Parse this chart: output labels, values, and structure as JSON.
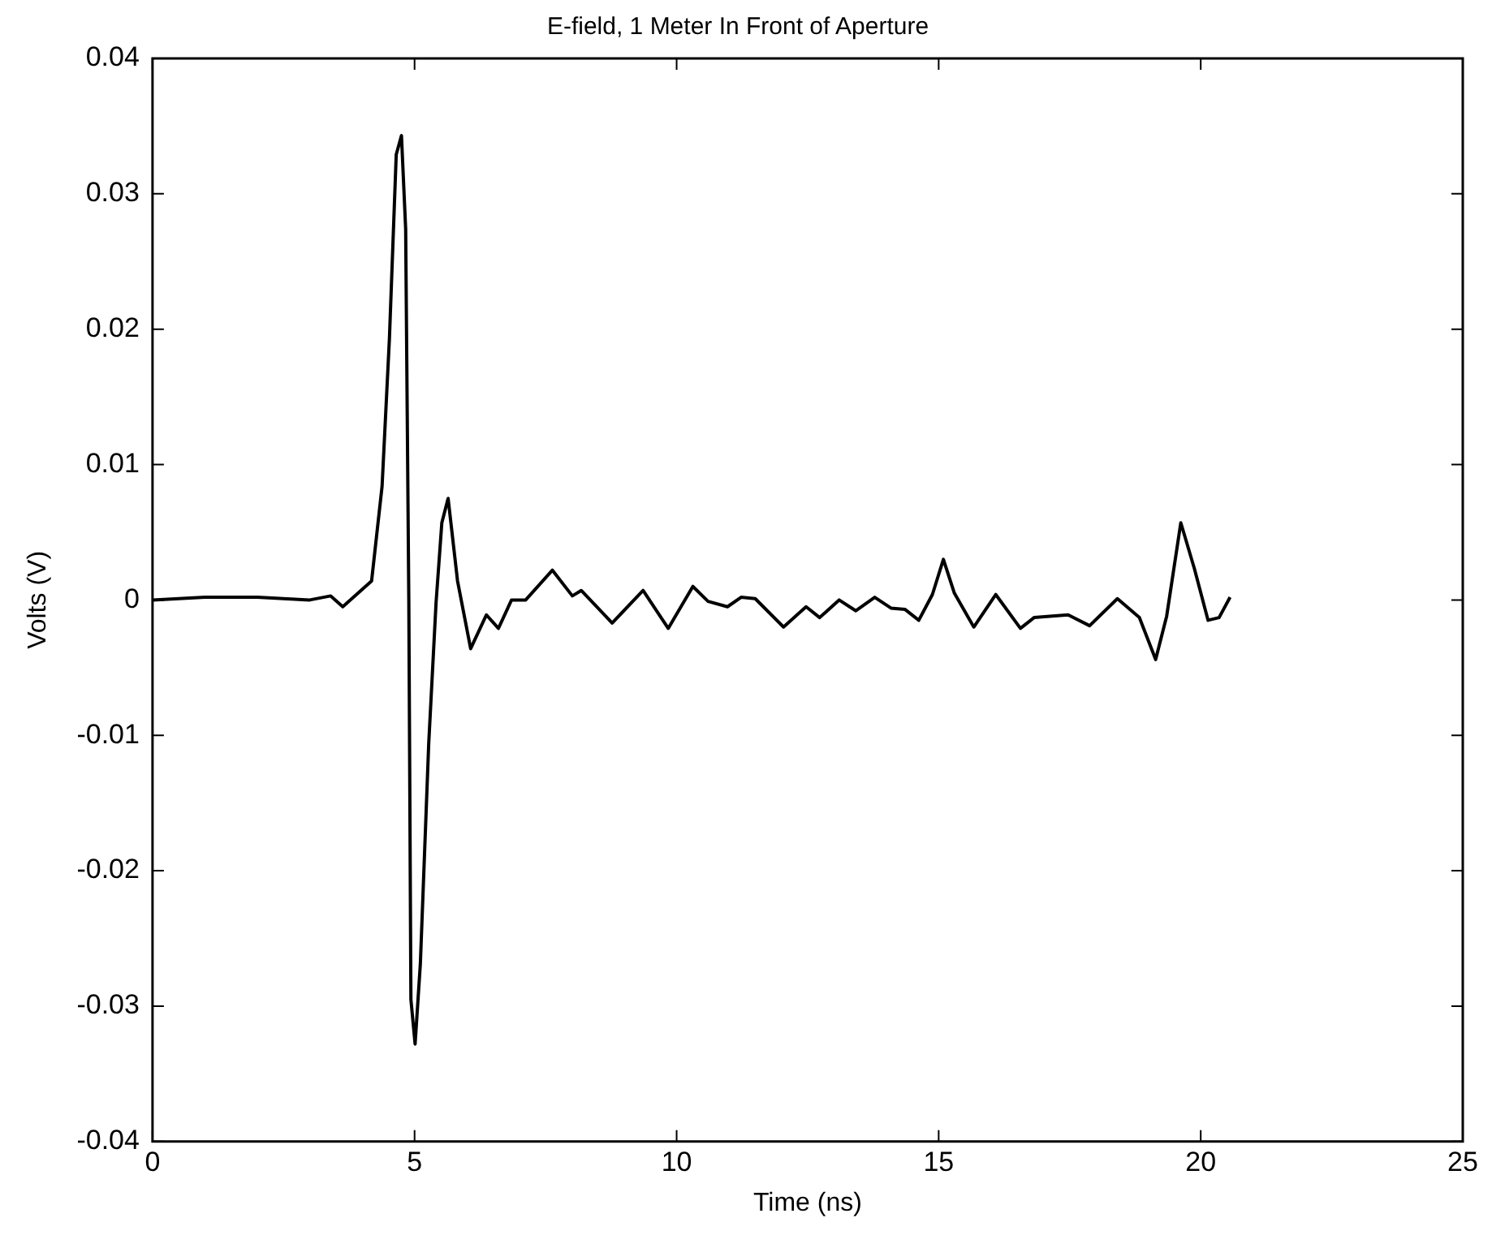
{
  "chart_data": {
    "type": "line",
    "title": "E-field, 1 Meter In Front of Aperture",
    "xlabel": "Time (ns)",
    "ylabel": "Volts (V)",
    "xlim": [
      0,
      25
    ],
    "xticks": [
      0,
      5,
      10,
      15,
      20,
      25
    ],
    "ylim": [
      -0.04,
      0.04
    ],
    "yticks": [
      -0.04,
      -0.03,
      -0.02,
      -0.01,
      0,
      0.01,
      0.02,
      0.03,
      0.04
    ],
    "grid": false,
    "legend": false,
    "marker": "none",
    "line_style": "solid",
    "series": [
      {
        "color": "#000000",
        "x": [
          0,
          1,
          2,
          3,
          3.4,
          3.63,
          4.18,
          4.38,
          4.52,
          4.65,
          4.75,
          4.83,
          4.89,
          4.93,
          5.01,
          5.11,
          5.27,
          5.41,
          5.52,
          5.64,
          5.82,
          6.07,
          6.37,
          6.6,
          6.85,
          7.12,
          7.63,
          8.01,
          8.18,
          8.77,
          9.36,
          9.84,
          10.31,
          10.6,
          10.97,
          11.23,
          11.5,
          12.04,
          12.47,
          12.73,
          13.1,
          13.42,
          13.78,
          14.09,
          14.36,
          14.62,
          14.88,
          15.09,
          15.3,
          15.67,
          16.09,
          16.56,
          16.82,
          17.47,
          17.88,
          18.41,
          18.83,
          19.14,
          19.35,
          19.62,
          19.88,
          20.14,
          20.35,
          20.56
        ],
        "values": [
          0,
          0.0002,
          0.0002,
          0,
          0.0003,
          -0.0005,
          0.0014,
          0.0084,
          0.0193,
          0.0329,
          0.0343,
          0.0274,
          0,
          -0.0295,
          -0.0328,
          -0.0269,
          -0.0106,
          -0.0002,
          0.0057,
          0.0075,
          0.0014,
          -0.0036,
          -0.0011,
          -0.0021,
          0,
          0,
          0.0022,
          0.0003,
          0.0007,
          -0.0017,
          0.0007,
          -0.0021,
          0.001,
          -0.0001,
          -0.0005,
          0.0002,
          0.0001,
          -0.002,
          -0.0005,
          -0.0013,
          0,
          -0.0008,
          0.0002,
          -0.0006,
          -0.0007,
          -0.0015,
          0.0004,
          0.003,
          0.0005,
          -0.002,
          0.0004,
          -0.0021,
          -0.0013,
          -0.0011,
          -0.0019,
          0.0001,
          -0.0013,
          -0.0044,
          -0.0012,
          0.0057,
          0.0023,
          -0.0015,
          -0.0013,
          0.0002
        ]
      }
    ]
  }
}
